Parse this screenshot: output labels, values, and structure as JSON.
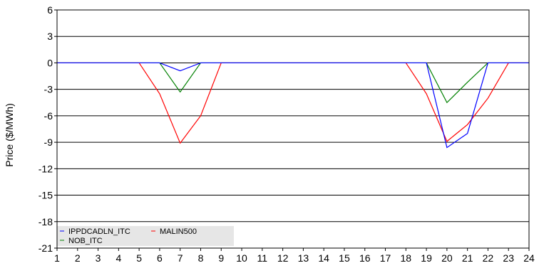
{
  "chart_data": {
    "type": "line",
    "title": "",
    "xlabel": "",
    "ylabel": "Price ($/MWh)",
    "x": [
      1,
      2,
      3,
      4,
      5,
      6,
      7,
      8,
      9,
      10,
      11,
      12,
      13,
      14,
      15,
      16,
      17,
      18,
      19,
      20,
      21,
      22,
      23,
      24
    ],
    "xlim": [
      1,
      24
    ],
    "ylim": [
      -21,
      6
    ],
    "yticks": [
      6,
      3,
      0,
      -3,
      -6,
      -9,
      -12,
      -15,
      -18,
      -21
    ],
    "grid": true,
    "legend": "bottom-left",
    "series": [
      {
        "name": "IPPDCADLN_ITC",
        "color": "#0000ff",
        "values": [
          0,
          0,
          0,
          0,
          0,
          0,
          -0.9,
          0,
          0,
          0,
          0,
          0,
          0,
          0,
          0,
          0,
          0,
          0,
          0,
          -9.6,
          -8,
          0,
          0,
          0
        ]
      },
      {
        "name": "MALIN500",
        "color": "#ff0000",
        "values": [
          0,
          0,
          0,
          0,
          0,
          -3.5,
          -9.1,
          -6,
          0,
          0,
          0,
          0,
          0,
          0,
          0,
          0,
          0,
          0,
          -3.5,
          -8.9,
          -7,
          -4,
          0,
          0
        ]
      },
      {
        "name": "NOB_ITC",
        "color": "#008000",
        "values": [
          0,
          0,
          0,
          0,
          0,
          0,
          -3.3,
          0,
          0,
          0,
          0,
          0,
          0,
          0,
          0,
          0,
          0,
          0,
          0,
          -4.5,
          -2.2,
          0,
          0,
          0
        ]
      }
    ]
  }
}
